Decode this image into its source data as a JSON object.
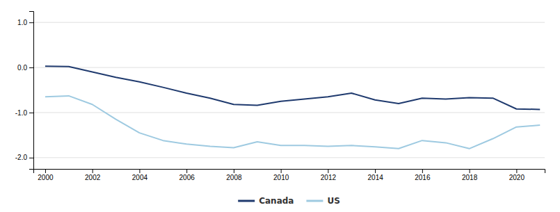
{
  "chart_data": {
    "type": "line",
    "x": [
      2000,
      2001,
      2002,
      2003,
      2004,
      2005,
      2006,
      2007,
      2008,
      2009,
      2010,
      2011,
      2012,
      2013,
      2014,
      2015,
      2016,
      2017,
      2018,
      2019,
      2020,
      2021
    ],
    "series": [
      {
        "name": "Canada",
        "color": "#1f3a6e",
        "values": [
          0.03,
          0.02,
          -0.1,
          -0.22,
          -0.32,
          -0.44,
          -0.57,
          -0.68,
          -0.82,
          -0.84,
          -0.75,
          -0.7,
          -0.65,
          -0.57,
          -0.72,
          -0.8,
          -0.68,
          -0.7,
          -0.67,
          -0.68,
          -0.92,
          -0.93
        ]
      },
      {
        "name": "US",
        "color": "#9ecae1",
        "values": [
          -0.65,
          -0.63,
          -0.82,
          -1.15,
          -1.45,
          -1.62,
          -1.7,
          -1.75,
          -1.78,
          -1.65,
          -1.73,
          -1.73,
          -1.75,
          -1.73,
          -1.76,
          -1.8,
          -1.62,
          -1.67,
          -1.8,
          -1.58,
          -1.32,
          -1.28
        ]
      }
    ],
    "xlim": [
      1999.5,
      2021.2
    ],
    "xticks": [
      2000,
      2002,
      2004,
      2006,
      2008,
      2010,
      2012,
      2014,
      2016,
      2018,
      2020
    ],
    "ylim": [
      -2.25,
      1.25
    ],
    "yticks": [
      {
        "value": -2.0,
        "label": "-2.0"
      },
      {
        "value": -1.0,
        "label": "-1.0"
      },
      {
        "value": 0.0,
        "label": "0.0"
      },
      {
        "value": 1.0,
        "label": "1.0"
      }
    ],
    "grid": true,
    "legend": "bottom"
  }
}
